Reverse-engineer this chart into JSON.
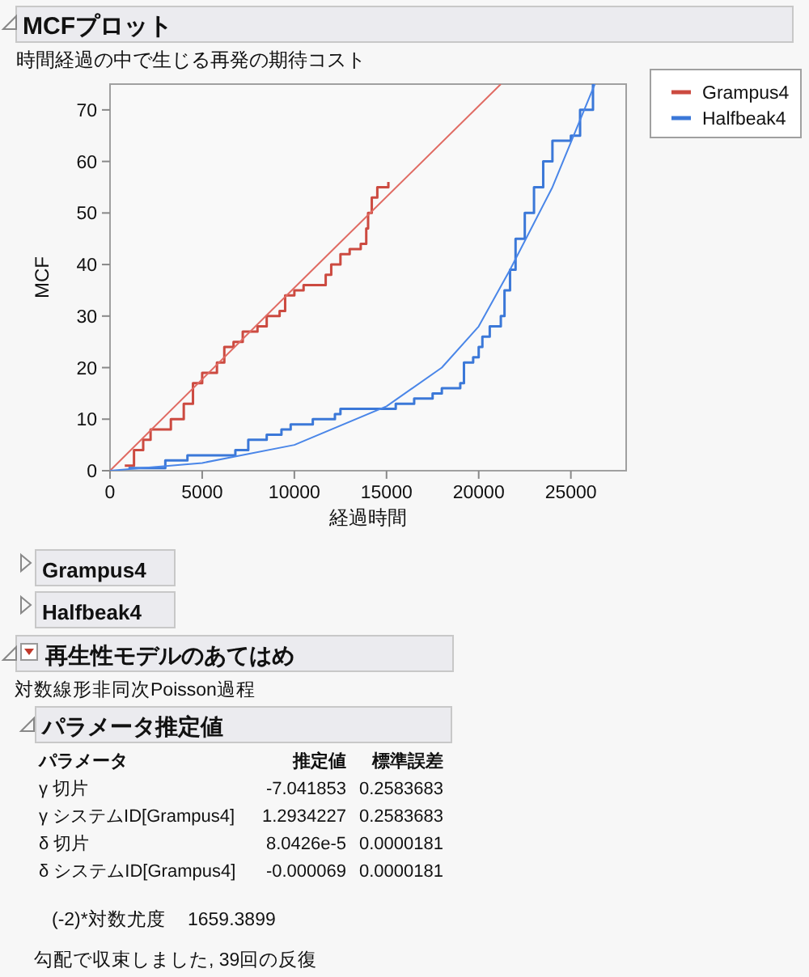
{
  "chart_data": {
    "type": "step",
    "title": "MCFプロット",
    "subtitle": "時間経過の中で生じる再発の期待コスト",
    "xlabel": "経過時間",
    "ylabel": "MCF",
    "xlim": [
      0,
      28000
    ],
    "xticks": [
      0,
      5000,
      10000,
      15000,
      20000,
      25000
    ],
    "ylim": [
      0,
      75
    ],
    "yticks": [
      0,
      10,
      20,
      30,
      40,
      50,
      60,
      70
    ],
    "grid": false,
    "legend": "right",
    "marker": "none",
    "line_style": "solid",
    "series": [
      {
        "name": "Grampus4",
        "color": "#cc4a40",
        "x": [
          800,
          1300,
          1800,
          2200,
          3300,
          4000,
          4500,
          5000,
          5800,
          6200,
          6700,
          7200,
          8000,
          8500,
          9200,
          9500,
          10000,
          10500,
          11700,
          12000,
          12500,
          13000,
          13600,
          13900,
          14000,
          14200,
          14500,
          15100
        ],
        "values": [
          1,
          4,
          6,
          8,
          10,
          13,
          17,
          19,
          21,
          24,
          25,
          27,
          28,
          30,
          31,
          34,
          35,
          36,
          38,
          40,
          42,
          43,
          44,
          47,
          50,
          53,
          55,
          56
        ]
      },
      {
        "name": "Halfbeak4",
        "color": "#3b78d8",
        "x": [
          1000,
          3000,
          4200,
          6800,
          7500,
          8500,
          9300,
          9800,
          11000,
          12200,
          12500,
          15500,
          16500,
          17500,
          18000,
          19000,
          19200,
          19700,
          20000,
          20200,
          20600,
          21200,
          21400,
          21700,
          22000,
          22500,
          23000,
          23500,
          24000,
          25000,
          25500,
          26200
        ],
        "values": [
          0.5,
          2,
          3,
          4,
          6,
          7,
          8,
          9,
          10,
          11,
          12,
          13,
          14,
          15,
          16,
          17,
          21,
          22,
          24,
          26,
          28,
          30,
          35,
          39,
          45,
          50,
          55,
          60,
          64,
          65,
          70,
          75
        ]
      },
      {
        "color": "#e06b63",
        "type": "line",
        "x": [
          0,
          10000,
          21200
        ],
        "values": [
          0,
          35.5,
          75
        ]
      },
      {
        "color": "#4a86e8",
        "type": "line",
        "x": [
          0,
          5000,
          10000,
          15000,
          18000,
          20000,
          21700,
          24000,
          26300
        ],
        "values": [
          0,
          1.5,
          5,
          12.5,
          20,
          28,
          39,
          55,
          75
        ]
      }
    ],
    "annotations": [
      "Grampus4",
      "Halfbeak4",
      "再生性モデルのあてはめ",
      "対数線形非同次Poisson過程",
      "パラメータ推定値",
      "パラメータ",
      "推定値",
      "標準誤差",
      "γ 切片",
      "-7.041853",
      "0.2583683",
      "γ システムID[Grampus4]",
      "1.2934227",
      "0.2583683",
      "δ 切片",
      "8.0426e-5",
      "0.0000181",
      "δ システムID[Grampus4]",
      "-0.000069",
      "0.0000181",
      "(-2)*対数尤度",
      "1659.3899",
      "勾配で収束しました, 39回の反復"
    ]
  }
}
